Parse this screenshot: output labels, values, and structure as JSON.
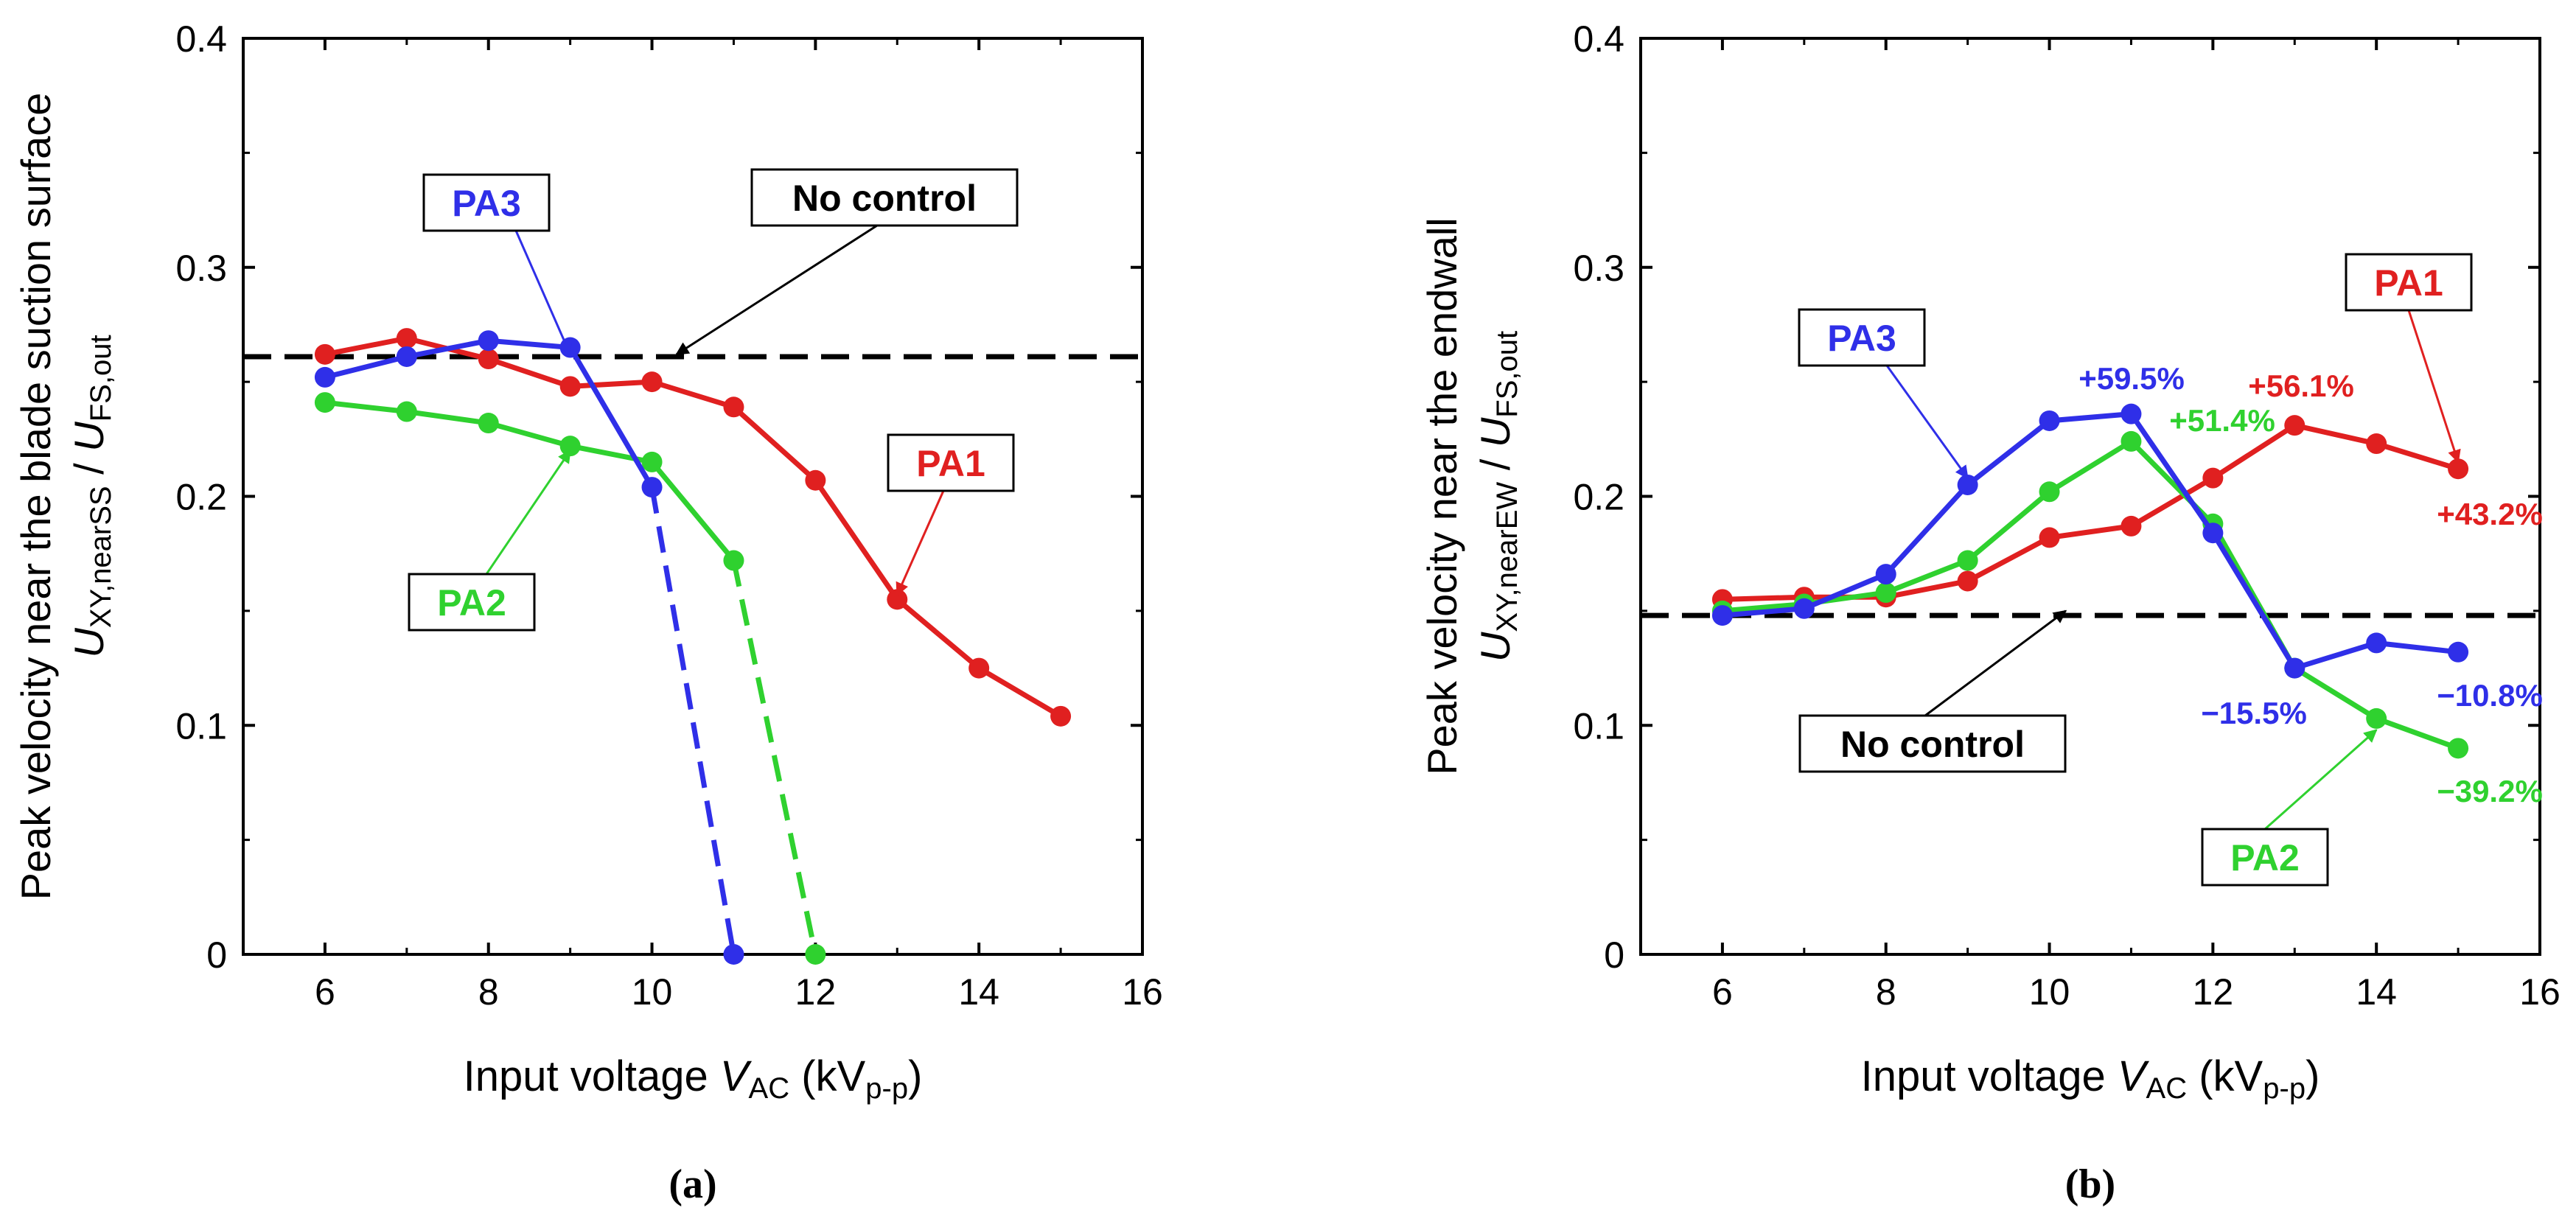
{
  "colors": {
    "PA1": "#e02020",
    "PA2": "#2fd12f",
    "PA3": "#2f2fe8",
    "nocontrol": "#000000"
  },
  "chart_data": [
    {
      "id": "a",
      "type": "line",
      "panel_label": "(a)",
      "ylabel_line1": "Peak velocity near the blade suction surface",
      "ylabel_line2": {
        "U1": "U",
        "sub1": "XY,nearSS",
        "slash": " / ",
        "U2": "U",
        "sub2": "FS,out"
      },
      "xlabel": {
        "pre": "Input voltage ",
        "var": "V",
        "sub": "AC",
        "mid": " (kV",
        "sub2": "p-p",
        "post": ")"
      },
      "xlim": [
        5,
        16
      ],
      "ylim": [
        0,
        0.4
      ],
      "xticks": [
        "6",
        "8",
        "10",
        "12",
        "14",
        "16"
      ],
      "yticks": [
        "0",
        "0.1",
        "0.2",
        "0.3",
        "0.4"
      ],
      "no_control": {
        "name": "No control",
        "y": 0.261
      },
      "series": [
        {
          "name": "PA1",
          "x": [
            6,
            7,
            8,
            9,
            10,
            11,
            12,
            13,
            14,
            15
          ],
          "values": [
            0.262,
            0.269,
            0.26,
            0.248,
            0.25,
            0.239,
            0.207,
            0.155,
            0.125,
            0.104
          ]
        },
        {
          "name": "PA2",
          "x": [
            6,
            7,
            8,
            9,
            10,
            11
          ],
          "values": [
            0.241,
            0.237,
            0.232,
            0.222,
            0.215,
            0.172
          ],
          "dashed": {
            "x": [
              11,
              12
            ],
            "values": [
              0.172,
              0
            ]
          }
        },
        {
          "name": "PA3",
          "x": [
            6,
            7,
            8,
            9,
            10
          ],
          "values": [
            0.252,
            0.261,
            0.268,
            0.265,
            0.204
          ],
          "dashed": {
            "x": [
              10,
              11
            ],
            "values": [
              0.204,
              0
            ]
          }
        }
      ],
      "annotations": [
        {
          "text": "PA3",
          "series": "PA3"
        },
        {
          "text": "No control",
          "series": "nocontrol"
        },
        {
          "text": "PA1",
          "series": "PA1"
        },
        {
          "text": "PA2",
          "series": "PA2"
        }
      ]
    },
    {
      "id": "b",
      "type": "line",
      "panel_label": "(b)",
      "ylabel_line1": "Peak velocity near the endwall",
      "ylabel_line2": {
        "U1": "U",
        "sub1": "XY,nearEW",
        "slash": " / ",
        "U2": "U",
        "sub2": "FS,out"
      },
      "xlabel": {
        "pre": "Input voltage ",
        "var": "V",
        "sub": "AC",
        "mid": " (kV",
        "sub2": "p-p",
        "post": ")"
      },
      "xlim": [
        5,
        16
      ],
      "ylim": [
        0,
        0.4
      ],
      "xticks": [
        "6",
        "8",
        "10",
        "12",
        "14",
        "16"
      ],
      "yticks": [
        "0",
        "0.1",
        "0.2",
        "0.3",
        "0.4"
      ],
      "no_control": {
        "name": "No control",
        "y": 0.148
      },
      "series": [
        {
          "name": "PA1",
          "x": [
            6,
            7,
            8,
            9,
            10,
            11,
            12,
            13,
            14,
            15
          ],
          "values": [
            0.155,
            0.156,
            0.156,
            0.163,
            0.182,
            0.187,
            0.208,
            0.231,
            0.223,
            0.212
          ]
        },
        {
          "name": "PA2",
          "x": [
            6,
            7,
            8,
            9,
            10,
            11,
            12,
            13,
            14,
            15
          ],
          "values": [
            0.15,
            0.153,
            0.158,
            0.172,
            0.202,
            0.224,
            0.188,
            0.125,
            0.103,
            0.09
          ]
        },
        {
          "name": "PA3",
          "x": [
            6,
            7,
            8,
            9,
            10,
            11,
            12,
            13,
            14,
            15
          ],
          "values": [
            0.148,
            0.151,
            0.166,
            0.205,
            0.233,
            0.236,
            0.184,
            0.125,
            0.136,
            0.132
          ]
        }
      ],
      "annotations": [
        {
          "text": "PA3",
          "series": "PA3"
        },
        {
          "text": "PA1",
          "series": "PA1"
        },
        {
          "text": "No control",
          "series": "nocontrol"
        },
        {
          "text": "PA2",
          "series": "PA2"
        }
      ],
      "percent_labels": [
        {
          "text": "+59.5%",
          "series": "PA3"
        },
        {
          "text": "+51.4%",
          "series": "PA2"
        },
        {
          "text": "+56.1%",
          "series": "PA1"
        },
        {
          "text": "+43.2%",
          "series": "PA1"
        },
        {
          "text": "−15.5%",
          "series": "PA3"
        },
        {
          "text": "−10.8%",
          "series": "PA3"
        },
        {
          "text": "−39.2%",
          "series": "PA2"
        }
      ]
    }
  ]
}
